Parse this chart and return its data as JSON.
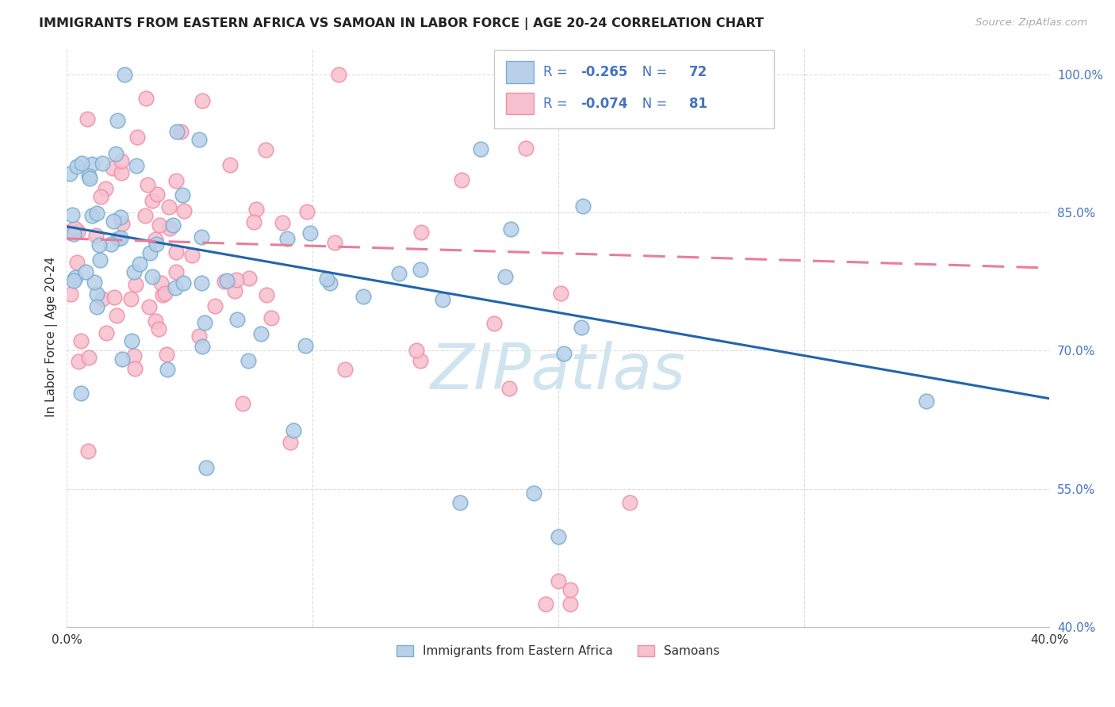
{
  "title": "IMMIGRANTS FROM EASTERN AFRICA VS SAMOAN IN LABOR FORCE | AGE 20-24 CORRELATION CHART",
  "source": "Source: ZipAtlas.com",
  "ylabel": "In Labor Force | Age 20-24",
  "xlim": [
    0.0,
    0.4
  ],
  "ylim": [
    0.4,
    1.03
  ],
  "yticks": [
    0.4,
    0.55,
    0.7,
    0.85,
    1.0
  ],
  "ytick_labels": [
    "40.0%",
    "55.0%",
    "70.0%",
    "85.0%",
    "100.0%"
  ],
  "xticks": [
    0.0,
    0.1,
    0.2,
    0.3,
    0.4
  ],
  "xtick_labels": [
    "0.0%",
    "",
    "",
    "",
    "40.0%"
  ],
  "blue_R": "-0.265",
  "blue_N": "72",
  "pink_R": "-0.074",
  "pink_N": "81",
  "blue_fill": "#b8d0e8",
  "pink_fill": "#f7c0ce",
  "blue_edge": "#7aafd4",
  "pink_edge": "#f090a8",
  "blue_line_color": "#2166ac",
  "pink_line_color": "#e87e9a",
  "legend_text_color": "#4472c4",
  "watermark": "ZIPatlas",
  "watermark_color": "#d0e4f0"
}
